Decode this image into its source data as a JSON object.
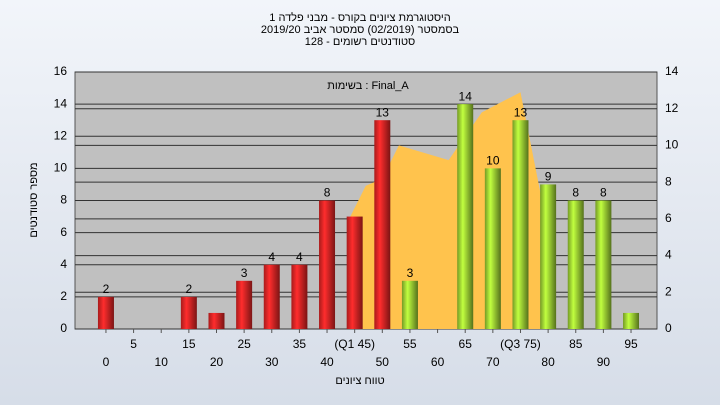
{
  "chart_data": {
    "type": "bar",
    "title": [
      "היסטוגרמת ציונים בקורס - מבני פלדה 1",
      "בסמסטר  (02/2019)  סמסטר אביב 2019/20",
      "סטודנטים רשומים - 128"
    ],
    "annotation": "בשימות : Final_A",
    "xlabel": "טווח ציונים",
    "ylabel": "מספר סטודנטים",
    "x": [
      0,
      5,
      10,
      15,
      20,
      25,
      30,
      35,
      40,
      45,
      50,
      55,
      60,
      65,
      70,
      75,
      80,
      85,
      90,
      95
    ],
    "values": [
      2,
      0,
      0,
      2,
      1,
      3,
      4,
      4,
      8,
      7,
      13,
      3,
      0,
      14,
      10,
      13,
      9,
      8,
      8,
      1
    ],
    "value_labels": [
      "2",
      null,
      null,
      "2",
      null,
      "3",
      "4",
      "4",
      "8",
      null,
      "13",
      "3",
      null,
      "14",
      "10",
      "13",
      "9",
      "8",
      "8",
      null
    ],
    "colors": [
      "#e02424",
      "#e02424",
      "#e02424",
      "#e02424",
      "#e02424",
      "#e02424",
      "#e02424",
      "#e02424",
      "#e02424",
      "#e02424",
      "#e02424",
      "#9acd32",
      "#9acd32",
      "#9acd32",
      "#9acd32",
      "#9acd32",
      "#9acd32",
      "#9acd32",
      "#9acd32",
      "#9acd32"
    ],
    "area": {
      "x": [
        44,
        47,
        50,
        53,
        62,
        68,
        75,
        80
      ],
      "values": [
        6.0,
        7.8,
        8.2,
        10.0,
        9.2,
        11.8,
        12.9,
        5.3
      ],
      "color": "#ffc34d",
      "axis": "y2"
    },
    "xlim": [
      -5.6,
      99.7
    ],
    "xticks": [
      0,
      5,
      10,
      15,
      20,
      25,
      30,
      35,
      40,
      {
        "value": 45,
        "label": "(Q1 45)"
      },
      50,
      55,
      60,
      65,
      70,
      {
        "value": 75,
        "label": "(Q3 75)"
      },
      80,
      85,
      90,
      95
    ],
    "ylim": [
      0,
      16
    ],
    "yticks": [
      0,
      2,
      4,
      6,
      8,
      10,
      12,
      14,
      16
    ],
    "y2lim": [
      0,
      14
    ],
    "y2ticks": [
      0,
      2,
      4,
      6,
      8,
      10,
      12,
      14
    ],
    "grid": true
  }
}
